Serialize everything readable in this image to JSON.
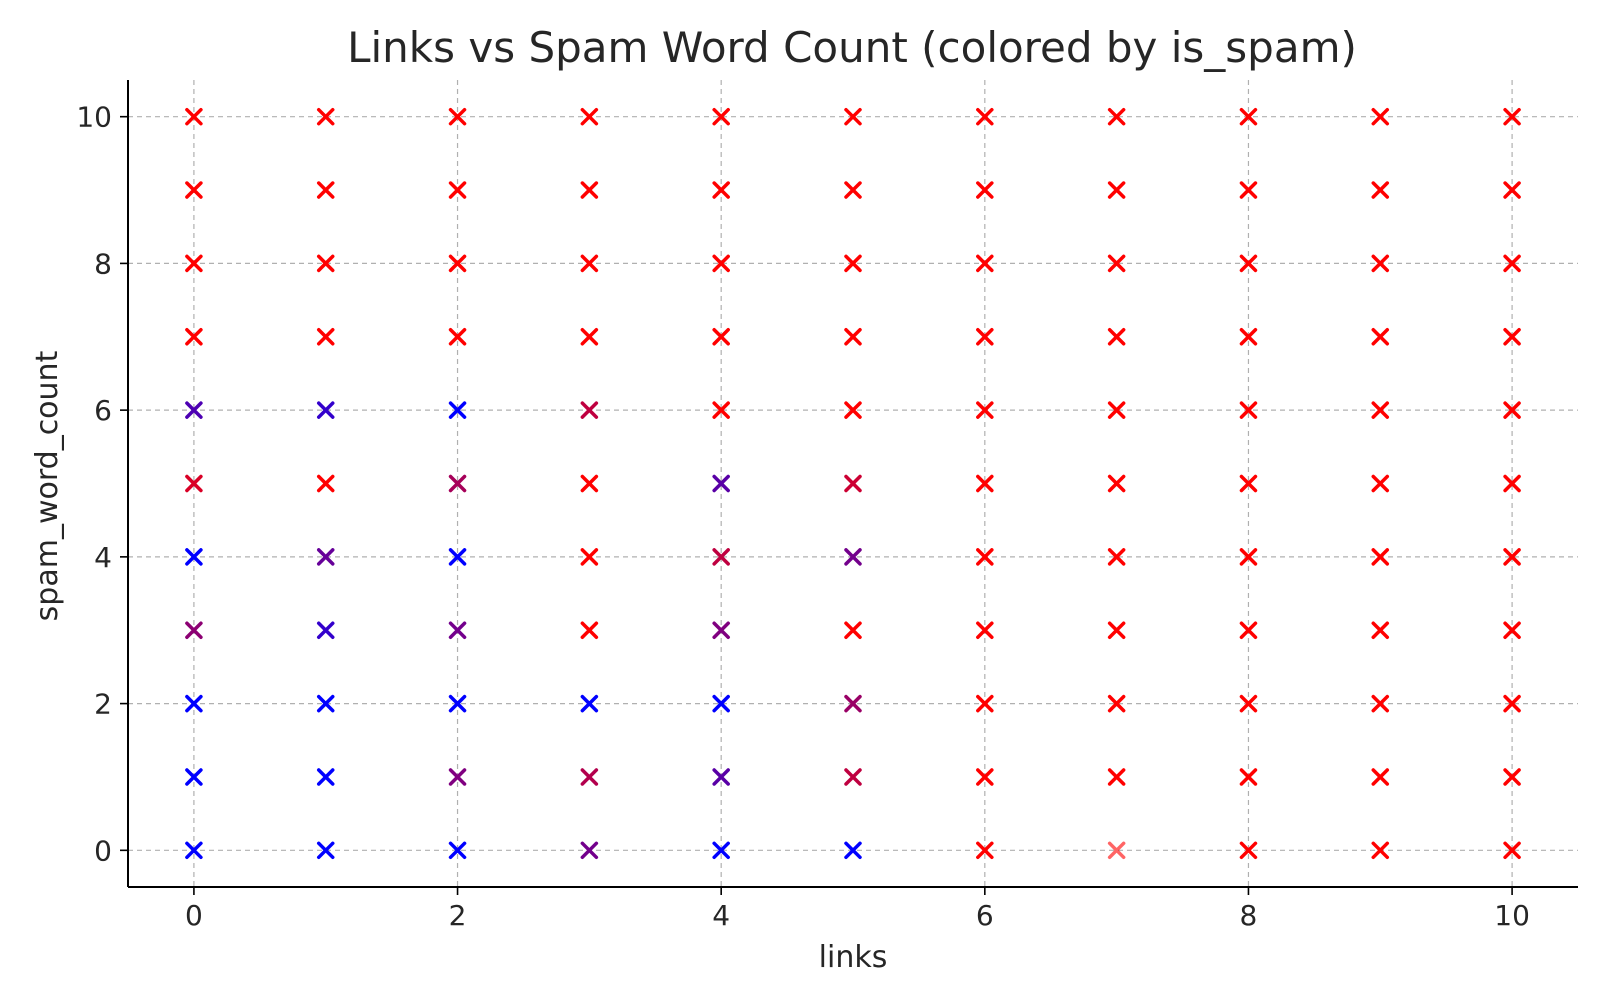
{
  "chart_data": {
    "type": "scatter",
    "title": "Links vs Spam Word Count (colored by is_spam)",
    "xlabel": "links",
    "ylabel": "spam_word_count",
    "xlim": [
      -0.5,
      10.5
    ],
    "ylim": [
      -0.5,
      10.5
    ],
    "x_ticks": [
      0,
      2,
      4,
      6,
      8,
      10
    ],
    "y_ticks": [
      0,
      2,
      4,
      6,
      8,
      10
    ],
    "grid": true,
    "grid_style": "dashed",
    "marker": "x",
    "color_scale": {
      "0": "#0000ff",
      "1": "#ff0000"
    },
    "points": [
      {
        "x": 0,
        "y": 0,
        "is_spam": 0
      },
      {
        "x": 0,
        "y": 1,
        "is_spam": 0
      },
      {
        "x": 0,
        "y": 2,
        "is_spam": 0
      },
      {
        "x": 0,
        "y": 3,
        "is_spam": 0.55
      },
      {
        "x": 0,
        "y": 4,
        "is_spam": 0
      },
      {
        "x": 0,
        "y": 5,
        "is_spam": 0.85
      },
      {
        "x": 0,
        "y": 6,
        "is_spam": 0.3
      },
      {
        "x": 0,
        "y": 7,
        "is_spam": 1
      },
      {
        "x": 0,
        "y": 8,
        "is_spam": 1
      },
      {
        "x": 0,
        "y": 9,
        "is_spam": 1
      },
      {
        "x": 0,
        "y": 10,
        "is_spam": 1
      },
      {
        "x": 1,
        "y": 0,
        "is_spam": 0
      },
      {
        "x": 1,
        "y": 1,
        "is_spam": 0
      },
      {
        "x": 1,
        "y": 2,
        "is_spam": 0
      },
      {
        "x": 1,
        "y": 3,
        "is_spam": 0.2
      },
      {
        "x": 1,
        "y": 4,
        "is_spam": 0.4
      },
      {
        "x": 1,
        "y": 5,
        "is_spam": 1
      },
      {
        "x": 1,
        "y": 6,
        "is_spam": 0.2
      },
      {
        "x": 1,
        "y": 7,
        "is_spam": 1
      },
      {
        "x": 1,
        "y": 8,
        "is_spam": 1
      },
      {
        "x": 1,
        "y": 9,
        "is_spam": 1
      },
      {
        "x": 1,
        "y": 10,
        "is_spam": 1
      },
      {
        "x": 2,
        "y": 0,
        "is_spam": 0
      },
      {
        "x": 2,
        "y": 1,
        "is_spam": 0.5
      },
      {
        "x": 2,
        "y": 2,
        "is_spam": 0
      },
      {
        "x": 2,
        "y": 3,
        "is_spam": 0.45
      },
      {
        "x": 2,
        "y": 4,
        "is_spam": 0
      },
      {
        "x": 2,
        "y": 5,
        "is_spam": 0.65
      },
      {
        "x": 2,
        "y": 6,
        "is_spam": 0
      },
      {
        "x": 2,
        "y": 7,
        "is_spam": 1
      },
      {
        "x": 2,
        "y": 8,
        "is_spam": 1
      },
      {
        "x": 2,
        "y": 9,
        "is_spam": 1
      },
      {
        "x": 2,
        "y": 10,
        "is_spam": 1
      },
      {
        "x": 3,
        "y": 0,
        "is_spam": 0.45
      },
      {
        "x": 3,
        "y": 1,
        "is_spam": 0.7
      },
      {
        "x": 3,
        "y": 2,
        "is_spam": 0
      },
      {
        "x": 3,
        "y": 3,
        "is_spam": 1
      },
      {
        "x": 3,
        "y": 4,
        "is_spam": 1
      },
      {
        "x": 3,
        "y": 5,
        "is_spam": 1
      },
      {
        "x": 3,
        "y": 6,
        "is_spam": 0.75
      },
      {
        "x": 3,
        "y": 7,
        "is_spam": 1
      },
      {
        "x": 3,
        "y": 8,
        "is_spam": 1
      },
      {
        "x": 3,
        "y": 9,
        "is_spam": 1
      },
      {
        "x": 3,
        "y": 10,
        "is_spam": 1
      },
      {
        "x": 4,
        "y": 0,
        "is_spam": 0
      },
      {
        "x": 4,
        "y": 1,
        "is_spam": 0.35
      },
      {
        "x": 4,
        "y": 2,
        "is_spam": 0
      },
      {
        "x": 4,
        "y": 3,
        "is_spam": 0.5
      },
      {
        "x": 4,
        "y": 4,
        "is_spam": 0.75
      },
      {
        "x": 4,
        "y": 5,
        "is_spam": 0.35
      },
      {
        "x": 4,
        "y": 6,
        "is_spam": 1
      },
      {
        "x": 4,
        "y": 7,
        "is_spam": 1
      },
      {
        "x": 4,
        "y": 8,
        "is_spam": 1
      },
      {
        "x": 4,
        "y": 9,
        "is_spam": 1
      },
      {
        "x": 4,
        "y": 10,
        "is_spam": 1
      },
      {
        "x": 5,
        "y": 0,
        "is_spam": 0
      },
      {
        "x": 5,
        "y": 1,
        "is_spam": 0.75
      },
      {
        "x": 5,
        "y": 2,
        "is_spam": 0.6
      },
      {
        "x": 5,
        "y": 3,
        "is_spam": 1
      },
      {
        "x": 5,
        "y": 4,
        "is_spam": 0.45
      },
      {
        "x": 5,
        "y": 5,
        "is_spam": 0.8
      },
      {
        "x": 5,
        "y": 6,
        "is_spam": 1
      },
      {
        "x": 5,
        "y": 7,
        "is_spam": 1
      },
      {
        "x": 5,
        "y": 8,
        "is_spam": 1
      },
      {
        "x": 5,
        "y": 9,
        "is_spam": 1
      },
      {
        "x": 5,
        "y": 10,
        "is_spam": 1
      },
      {
        "x": 6,
        "y": 0,
        "is_spam": 1
      },
      {
        "x": 6,
        "y": 1,
        "is_spam": 1
      },
      {
        "x": 6,
        "y": 2,
        "is_spam": 1
      },
      {
        "x": 6,
        "y": 3,
        "is_spam": 1
      },
      {
        "x": 6,
        "y": 4,
        "is_spam": 1
      },
      {
        "x": 6,
        "y": 5,
        "is_spam": 1
      },
      {
        "x": 6,
        "y": 6,
        "is_spam": 1
      },
      {
        "x": 6,
        "y": 7,
        "is_spam": 1
      },
      {
        "x": 6,
        "y": 8,
        "is_spam": 1
      },
      {
        "x": 6,
        "y": 9,
        "is_spam": 1
      },
      {
        "x": 6,
        "y": 10,
        "is_spam": 1
      },
      {
        "x": 7,
        "y": 0,
        "is_spam": 1,
        "faded": true
      },
      {
        "x": 7,
        "y": 1,
        "is_spam": 1
      },
      {
        "x": 7,
        "y": 2,
        "is_spam": 1
      },
      {
        "x": 7,
        "y": 3,
        "is_spam": 1
      },
      {
        "x": 7,
        "y": 4,
        "is_spam": 1
      },
      {
        "x": 7,
        "y": 5,
        "is_spam": 1
      },
      {
        "x": 7,
        "y": 6,
        "is_spam": 1
      },
      {
        "x": 7,
        "y": 7,
        "is_spam": 1
      },
      {
        "x": 7,
        "y": 8,
        "is_spam": 1
      },
      {
        "x": 7,
        "y": 9,
        "is_spam": 1
      },
      {
        "x": 7,
        "y": 10,
        "is_spam": 1
      },
      {
        "x": 8,
        "y": 0,
        "is_spam": 1
      },
      {
        "x": 8,
        "y": 1,
        "is_spam": 1
      },
      {
        "x": 8,
        "y": 2,
        "is_spam": 1
      },
      {
        "x": 8,
        "y": 3,
        "is_spam": 1
      },
      {
        "x": 8,
        "y": 4,
        "is_spam": 1
      },
      {
        "x": 8,
        "y": 5,
        "is_spam": 1
      },
      {
        "x": 8,
        "y": 6,
        "is_spam": 1
      },
      {
        "x": 8,
        "y": 7,
        "is_spam": 1
      },
      {
        "x": 8,
        "y": 8,
        "is_spam": 1
      },
      {
        "x": 8,
        "y": 9,
        "is_spam": 1
      },
      {
        "x": 8,
        "y": 10,
        "is_spam": 1
      },
      {
        "x": 9,
        "y": 0,
        "is_spam": 1
      },
      {
        "x": 9,
        "y": 1,
        "is_spam": 1
      },
      {
        "x": 9,
        "y": 2,
        "is_spam": 1
      },
      {
        "x": 9,
        "y": 3,
        "is_spam": 1
      },
      {
        "x": 9,
        "y": 4,
        "is_spam": 1
      },
      {
        "x": 9,
        "y": 5,
        "is_spam": 1
      },
      {
        "x": 9,
        "y": 6,
        "is_spam": 1
      },
      {
        "x": 9,
        "y": 7,
        "is_spam": 1
      },
      {
        "x": 9,
        "y": 8,
        "is_spam": 1
      },
      {
        "x": 9,
        "y": 9,
        "is_spam": 1
      },
      {
        "x": 9,
        "y": 10,
        "is_spam": 1
      },
      {
        "x": 10,
        "y": 0,
        "is_spam": 1
      },
      {
        "x": 10,
        "y": 1,
        "is_spam": 1
      },
      {
        "x": 10,
        "y": 2,
        "is_spam": 1
      },
      {
        "x": 10,
        "y": 3,
        "is_spam": 1
      },
      {
        "x": 10,
        "y": 4,
        "is_spam": 1
      },
      {
        "x": 10,
        "y": 5,
        "is_spam": 1
      },
      {
        "x": 10,
        "y": 6,
        "is_spam": 1
      },
      {
        "x": 10,
        "y": 7,
        "is_spam": 1
      },
      {
        "x": 10,
        "y": 8,
        "is_spam": 1
      },
      {
        "x": 10,
        "y": 9,
        "is_spam": 1
      },
      {
        "x": 10,
        "y": 10,
        "is_spam": 1
      }
    ]
  }
}
